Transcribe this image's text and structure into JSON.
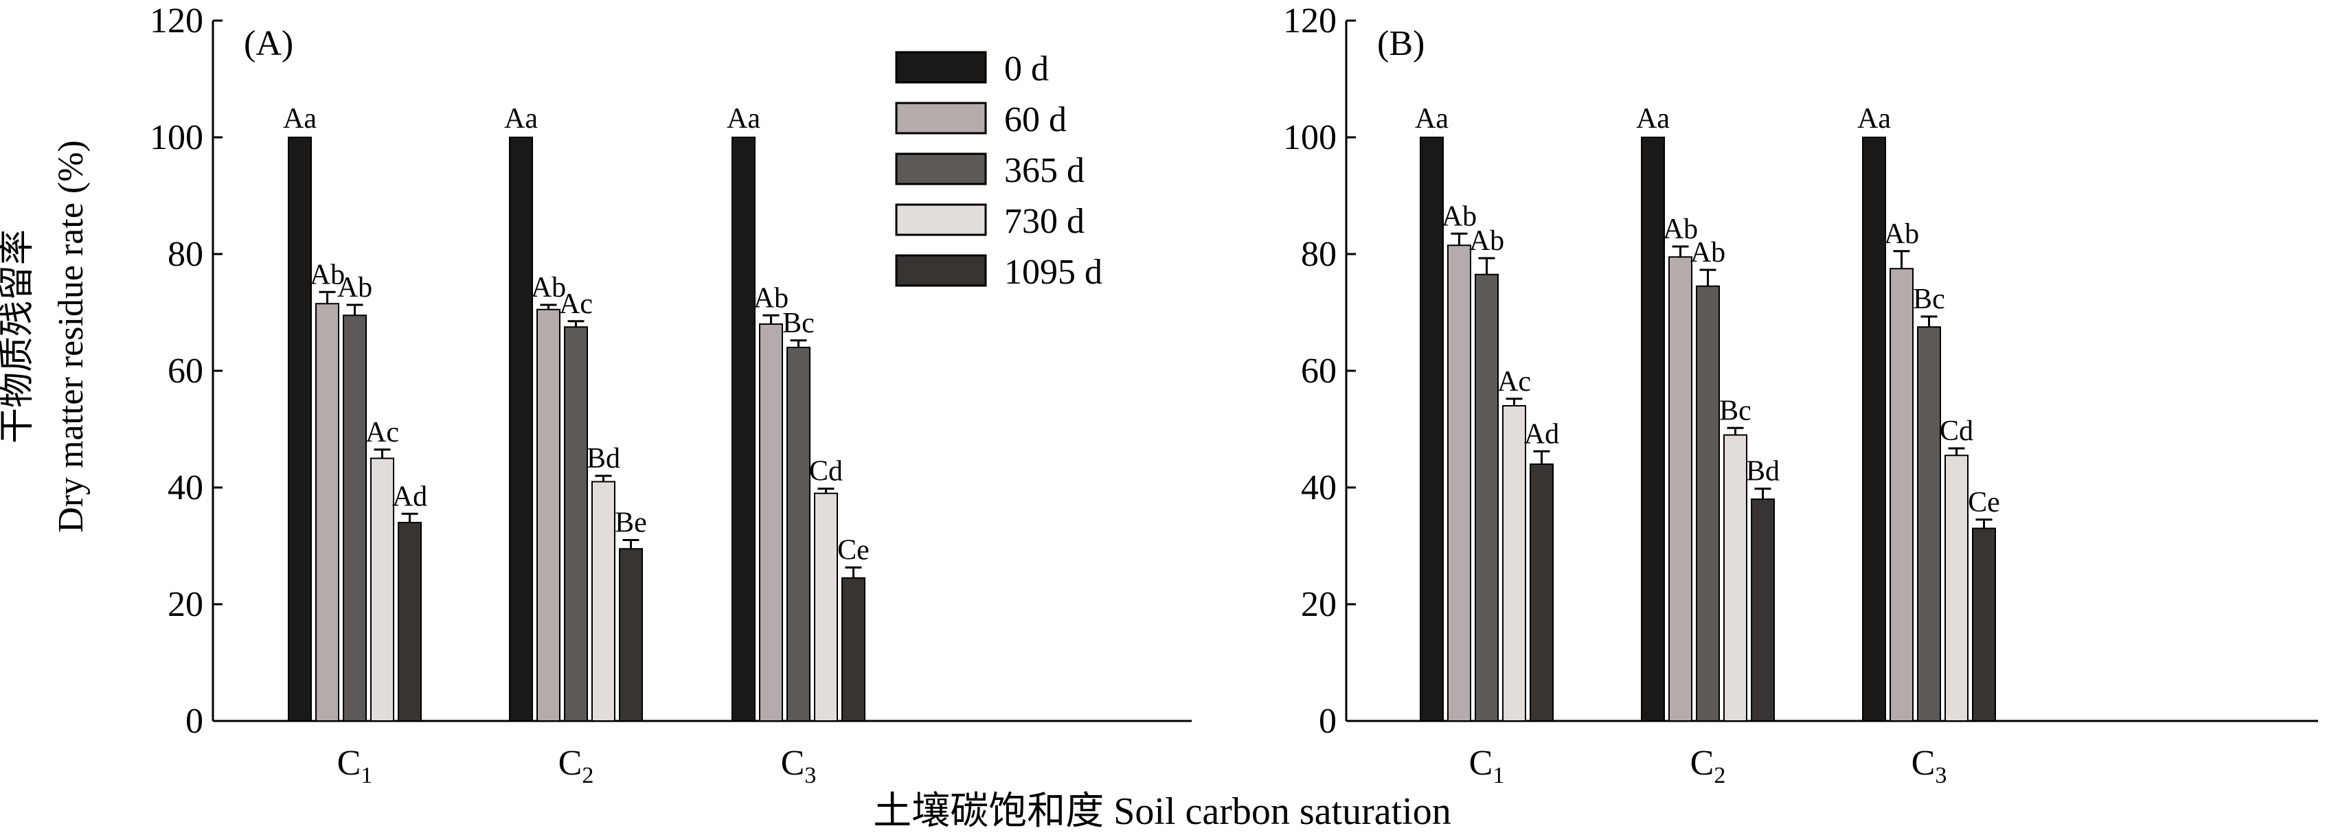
{
  "chart_data": [
    {
      "type": "bar",
      "panel": "(A)",
      "categories": [
        "C1",
        "C2",
        "C3"
      ],
      "series": [
        {
          "name": "0 d",
          "color": "#1a1917",
          "values": [
            100,
            100,
            100
          ],
          "errors": [
            0,
            0,
            0
          ],
          "letters": [
            "Aa",
            "Aa",
            "Aa"
          ]
        },
        {
          "name": "60 d",
          "color": "#b3acaa",
          "values": [
            71.5,
            70.5,
            68
          ],
          "errors": [
            2,
            0.8,
            1.5
          ],
          "letters": [
            "Ab",
            "Ab",
            "Ab"
          ]
        },
        {
          "name": "365 d",
          "color": "#5c5957",
          "values": [
            69.5,
            67.5,
            64
          ],
          "errors": [
            1.8,
            1,
            1.2
          ],
          "letters": [
            "Ab",
            "Ac",
            "Bc"
          ]
        },
        {
          "name": "730 d",
          "color": "#e2ddda",
          "values": [
            45,
            41,
            39
          ],
          "errors": [
            1.5,
            1,
            0.8
          ],
          "letters": [
            "Ac",
            "Bd",
            "Cd"
          ]
        },
        {
          "name": "1095 d",
          "color": "#383432",
          "values": [
            34,
            29.5,
            24.5
          ],
          "errors": [
            1.5,
            1.5,
            1.8
          ],
          "letters": [
            "Ad",
            "Be",
            "Ce"
          ]
        }
      ],
      "yticks": [
        "0",
        "20",
        "40",
        "60",
        "80",
        "100",
        "120"
      ],
      "ylim": [
        0,
        120
      ],
      "ylabel_cn": "干物质残留率",
      "ylabel": "Dry matter residue rate (%)",
      "legend": "top-right"
    },
    {
      "type": "bar",
      "panel": "(B)",
      "categories": [
        "C1",
        "C2",
        "C3"
      ],
      "series": [
        {
          "name": "0 d",
          "color": "#1a1917",
          "values": [
            100,
            100,
            100
          ],
          "errors": [
            0,
            0,
            0
          ],
          "letters": [
            "Aa",
            "Aa",
            "Aa"
          ]
        },
        {
          "name": "60 d",
          "color": "#b3acaa",
          "values": [
            81.5,
            79.5,
            77.5
          ],
          "errors": [
            2,
            1.8,
            3
          ],
          "letters": [
            "Ab",
            "Ab",
            "Ab"
          ]
        },
        {
          "name": "365 d",
          "color": "#5c5957",
          "values": [
            76.5,
            74.5,
            67.5
          ],
          "errors": [
            2.8,
            2.8,
            1.8
          ],
          "letters": [
            "Ab",
            "Ab",
            "Bc"
          ]
        },
        {
          "name": "730 d",
          "color": "#e2ddda",
          "values": [
            54,
            49,
            45.5
          ],
          "errors": [
            1.2,
            1.2,
            1.2
          ],
          "letters": [
            "Ac",
            "Bc",
            "Cd"
          ]
        },
        {
          "name": "1095 d",
          "color": "#383432",
          "values": [
            44,
            38,
            33
          ],
          "errors": [
            2.2,
            1.8,
            1.5
          ],
          "letters": [
            "Ad",
            "Bd",
            "Ce"
          ]
        }
      ],
      "yticks": [
        "0",
        "20",
        "40",
        "60",
        "80",
        "100",
        "120"
      ],
      "ylim": [
        0,
        120
      ]
    }
  ],
  "shared_xlabel": "土壤碳饱和度 Soil carbon saturation",
  "category_labels": [
    {
      "main": "C",
      "sub": "1"
    },
    {
      "main": "C",
      "sub": "2"
    },
    {
      "main": "C",
      "sub": "3"
    }
  ]
}
